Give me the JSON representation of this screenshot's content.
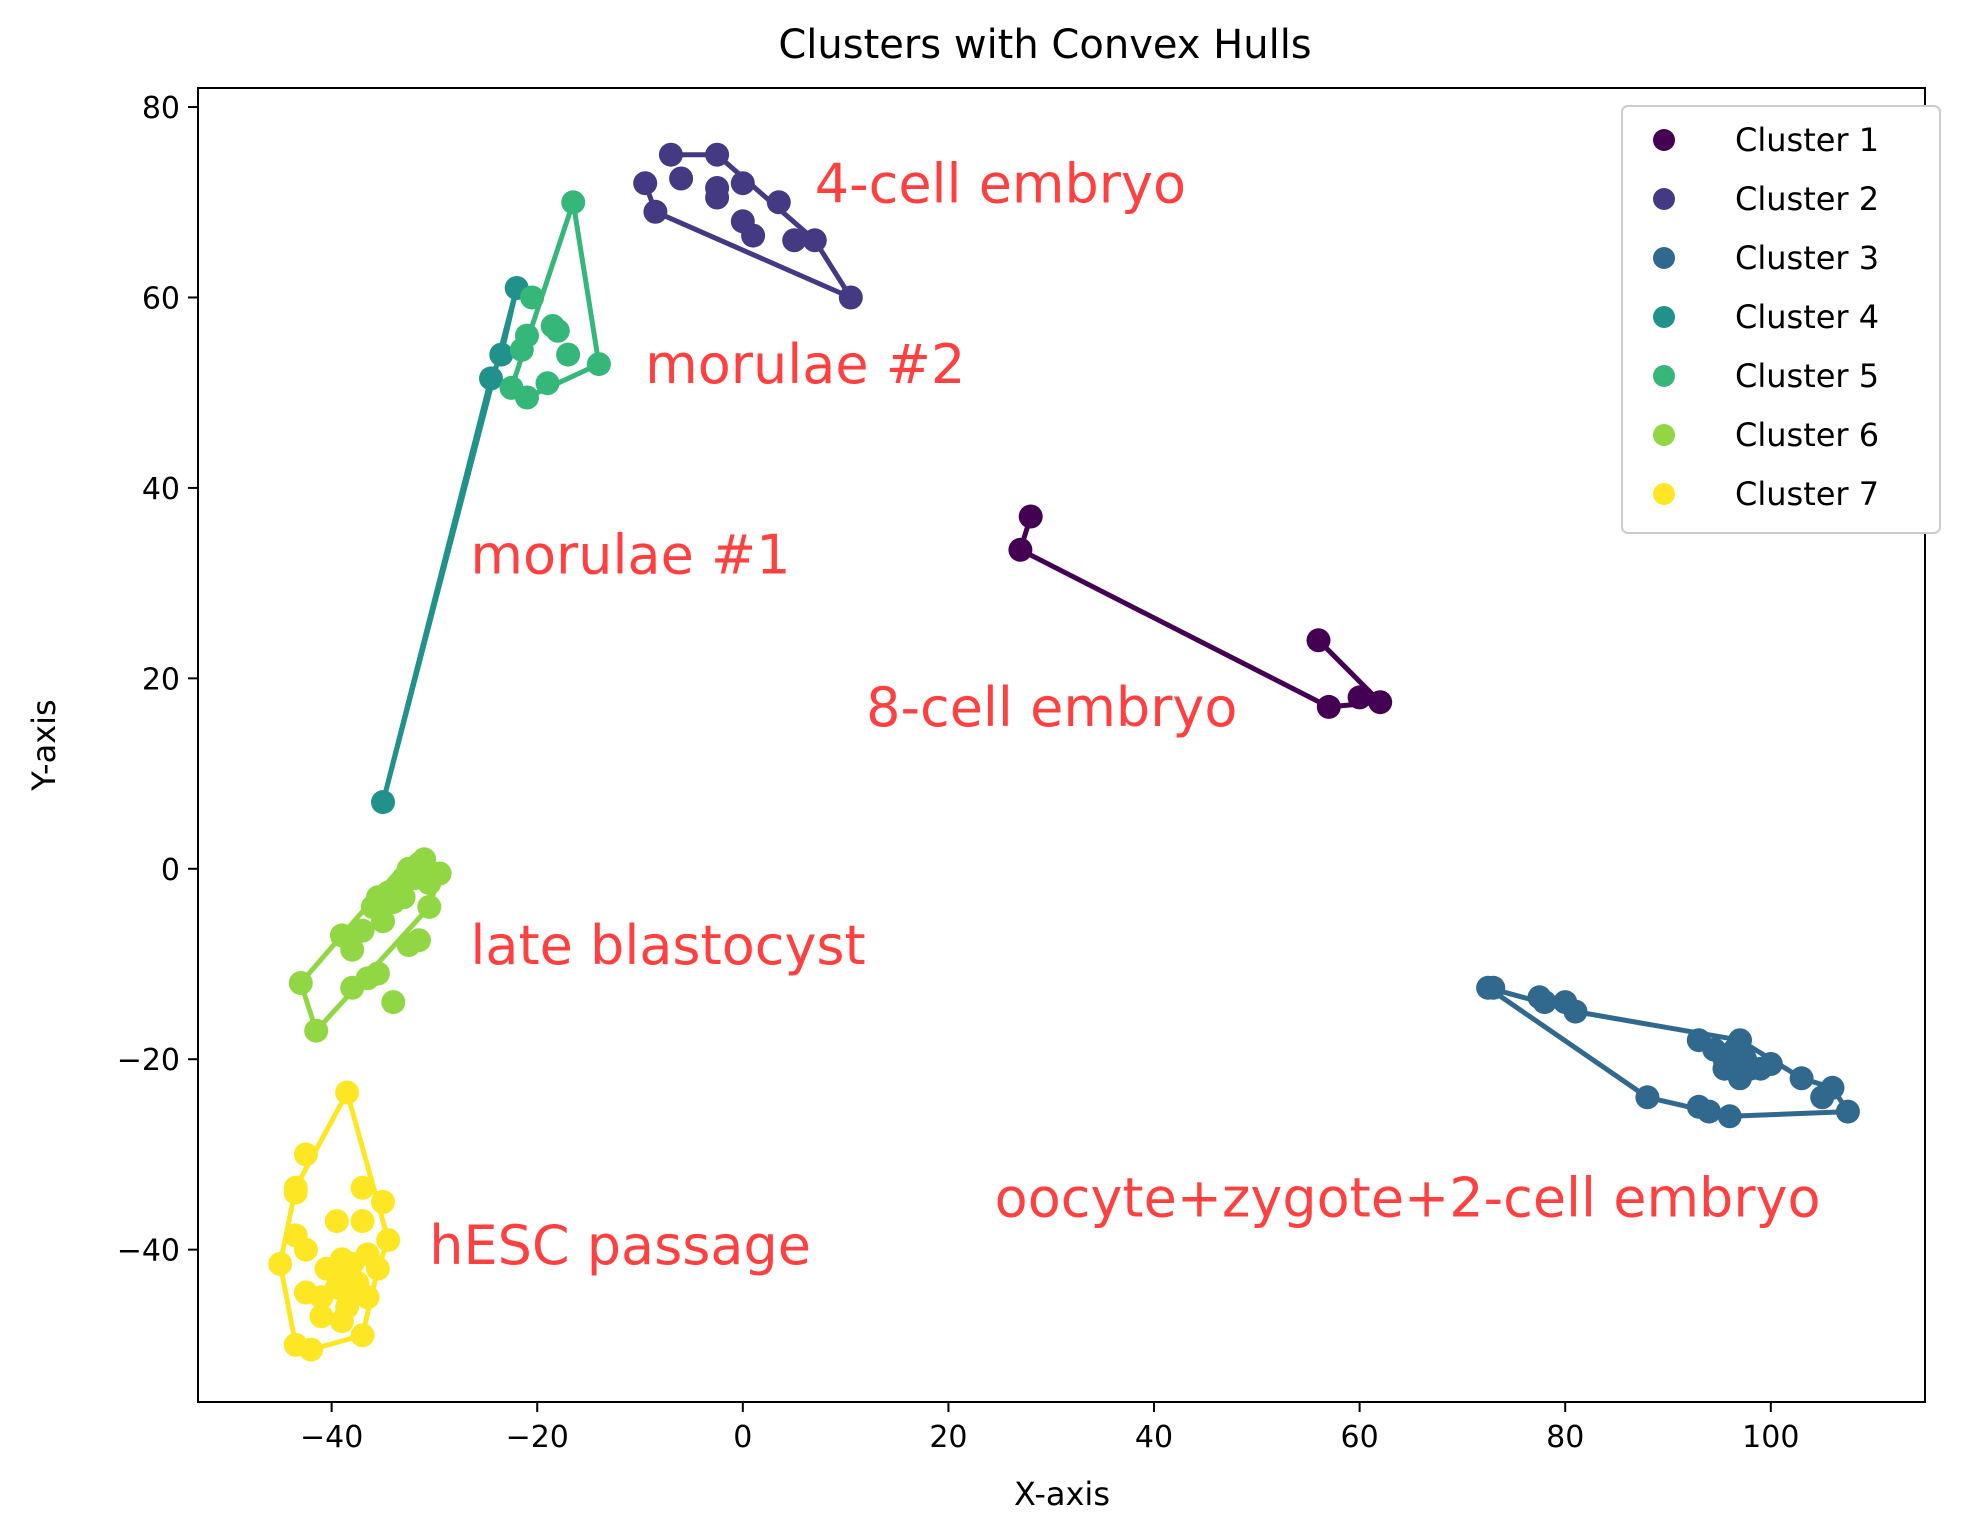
{
  "chart_data": {
    "type": "scatter",
    "title": "Clusters with Convex Hulls",
    "xlabel": "X-axis",
    "ylabel": "Y-axis",
    "xlim": [
      -53,
      115
    ],
    "ylim": [
      -56,
      82
    ],
    "xticks": [
      -40,
      -20,
      0,
      20,
      40,
      60,
      80,
      100
    ],
    "yticks": [
      -40,
      -20,
      0,
      20,
      40,
      60,
      80
    ],
    "xtick_labels": [
      "−40",
      "−20",
      "0",
      "20",
      "40",
      "60",
      "80",
      "100"
    ],
    "ytick_labels": [
      "−40",
      "−20",
      "0",
      "20",
      "40",
      "60",
      "80"
    ],
    "grid": false,
    "legend_position": "top-right",
    "series": [
      {
        "name": "Cluster 1",
        "color": "#440154",
        "label": "8-cell embryo",
        "points": [
          [
            28,
            37
          ],
          [
            27,
            33.5
          ],
          [
            56,
            24
          ],
          [
            57,
            17
          ],
          [
            60,
            18
          ],
          [
            62,
            17.5
          ]
        ],
        "hull": [
          [
            28,
            37
          ],
          [
            27,
            33.5
          ],
          [
            57,
            17
          ],
          [
            62,
            17.5
          ],
          [
            56,
            24
          ]
        ]
      },
      {
        "name": "Cluster 2",
        "color": "#443983",
        "label": "4-cell embryo",
        "points": [
          [
            -9.5,
            72
          ],
          [
            -8.5,
            69
          ],
          [
            -7,
            75
          ],
          [
            -6,
            72.5
          ],
          [
            -2.5,
            75
          ],
          [
            -2.5,
            70.5
          ],
          [
            -2.5,
            71.5
          ],
          [
            0,
            72
          ],
          [
            0,
            68
          ],
          [
            1,
            66.5
          ],
          [
            3.5,
            70
          ],
          [
            5,
            66
          ],
          [
            7,
            66
          ],
          [
            10.5,
            60
          ]
        ],
        "hull": [
          [
            -7,
            75
          ],
          [
            -2.5,
            75
          ],
          [
            7,
            66
          ],
          [
            10.5,
            60
          ],
          [
            -8.5,
            69
          ],
          [
            -9.5,
            72
          ]
        ]
      },
      {
        "name": "Cluster 3",
        "color": "#31688e",
        "label": "oocyte+zygote+2-cell embryo",
        "points": [
          [
            72.5,
            -12.5
          ],
          [
            73,
            -12.5
          ],
          [
            77.5,
            -13.5
          ],
          [
            78,
            -14
          ],
          [
            80,
            -14
          ],
          [
            81,
            -15
          ],
          [
            88,
            -24
          ],
          [
            93,
            -18
          ],
          [
            93,
            -25
          ],
          [
            94,
            -25.5
          ],
          [
            94.5,
            -19
          ],
          [
            95.5,
            -20
          ],
          [
            95.5,
            -21
          ],
          [
            96,
            -26
          ],
          [
            96.5,
            -19
          ],
          [
            97,
            -18
          ],
          [
            97,
            -22
          ],
          [
            97.5,
            -20
          ],
          [
            98,
            -21
          ],
          [
            99,
            -21
          ],
          [
            100,
            -20.5
          ],
          [
            103,
            -22
          ],
          [
            105,
            -24
          ],
          [
            106,
            -23
          ],
          [
            107.5,
            -25.5
          ]
        ],
        "hull": [
          [
            72.5,
            -12.5
          ],
          [
            81,
            -15
          ],
          [
            97,
            -18
          ],
          [
            103,
            -22
          ],
          [
            106,
            -23
          ],
          [
            107.5,
            -25.5
          ],
          [
            96,
            -26
          ],
          [
            94,
            -25.5
          ],
          [
            88,
            -24
          ],
          [
            72.5,
            -12.5
          ]
        ]
      },
      {
        "name": "Cluster 4",
        "color": "#21918c",
        "label": "morulae #1",
        "points": [
          [
            -35,
            7
          ],
          [
            -24.5,
            51.5
          ],
          [
            -23.5,
            54
          ],
          [
            -22,
            61
          ]
        ],
        "hull": [
          [
            -22,
            61
          ],
          [
            -35,
            7
          ],
          [
            -24.5,
            51.5
          ],
          [
            -23.5,
            54
          ],
          [
            -22,
            61
          ]
        ]
      },
      {
        "name": "Cluster 5",
        "color": "#35b779",
        "label": "morulae #2",
        "points": [
          [
            -16.5,
            70
          ],
          [
            -14,
            53
          ],
          [
            -17,
            54
          ],
          [
            -18,
            56.5
          ],
          [
            -18.5,
            57
          ],
          [
            -19,
            51
          ],
          [
            -20.5,
            60
          ],
          [
            -21,
            56
          ],
          [
            -21.5,
            54.5
          ],
          [
            -21,
            49.5
          ],
          [
            -22.5,
            50.5
          ]
        ],
        "hull": [
          [
            -16.5,
            70
          ],
          [
            -14,
            53
          ],
          [
            -21,
            49.5
          ],
          [
            -22.5,
            50.5
          ],
          [
            -16.5,
            70
          ]
        ]
      },
      {
        "name": "Cluster 6",
        "color": "#90d743",
        "label": "late blastocyst",
        "points": [
          [
            -43,
            -12
          ],
          [
            -41.5,
            -17
          ],
          [
            -39,
            -7
          ],
          [
            -38,
            -8.5
          ],
          [
            -37,
            -6.5
          ],
          [
            -36,
            -4
          ],
          [
            -35.5,
            -3
          ],
          [
            -35,
            -5.5
          ],
          [
            -34.5,
            -2.5
          ],
          [
            -34,
            -3.5
          ],
          [
            -33.5,
            -2
          ],
          [
            -33,
            -1.5
          ],
          [
            -33,
            -3
          ],
          [
            -32.5,
            0
          ],
          [
            -32,
            -1
          ],
          [
            -31.5,
            0.5
          ],
          [
            -31,
            1
          ],
          [
            -30.5,
            -1.5
          ],
          [
            -30.5,
            -4
          ],
          [
            -29.5,
            -0.5
          ],
          [
            -31.5,
            -7.5
          ],
          [
            -32.5,
            -8
          ],
          [
            -35.5,
            -11
          ],
          [
            -36.5,
            -11.5
          ],
          [
            -38,
            -12.5
          ],
          [
            -34,
            -14
          ]
        ],
        "hull": [
          [
            -43,
            -12
          ],
          [
            -33,
            0.5
          ],
          [
            -31,
            1
          ],
          [
            -29.5,
            -0.5
          ],
          [
            -30.5,
            -4
          ],
          [
            -41.5,
            -17
          ],
          [
            -43,
            -12
          ]
        ]
      },
      {
        "name": "Cluster 7",
        "color": "#fde725",
        "label": "hESC passage",
        "points": [
          [
            -38.5,
            -23.5
          ],
          [
            -42.5,
            -30
          ],
          [
            -43.5,
            -33.5
          ],
          [
            -43.5,
            -34
          ],
          [
            -37,
            -33.5
          ],
          [
            -35,
            -35
          ],
          [
            -39.5,
            -37
          ],
          [
            -37,
            -37
          ],
          [
            -43.5,
            -38.5
          ],
          [
            -34.5,
            -39
          ],
          [
            -42.5,
            -40
          ],
          [
            -36.5,
            -40.5
          ],
          [
            -39,
            -41
          ],
          [
            -38,
            -41.5
          ],
          [
            -35.5,
            -42
          ],
          [
            -45,
            -41.5
          ],
          [
            -40.5,
            -42
          ],
          [
            -39.5,
            -42.5
          ],
          [
            -38.5,
            -43
          ],
          [
            -37.5,
            -43.5
          ],
          [
            -39.5,
            -44
          ],
          [
            -38,
            -44
          ],
          [
            -41,
            -45
          ],
          [
            -42.5,
            -44.5
          ],
          [
            -36.5,
            -45
          ],
          [
            -38.5,
            -46
          ],
          [
            -41,
            -47
          ],
          [
            -39,
            -47.5
          ],
          [
            -37,
            -49
          ],
          [
            -43.5,
            -50
          ],
          [
            -42,
            -50.5
          ]
        ],
        "hull": [
          [
            -38.5,
            -23.5
          ],
          [
            -34.5,
            -39
          ],
          [
            -35.5,
            -42
          ],
          [
            -37,
            -49
          ],
          [
            -42,
            -50.5
          ],
          [
            -43.5,
            -50
          ],
          [
            -45,
            -41.5
          ],
          [
            -43.5,
            -33.5
          ],
          [
            -38.5,
            -23.5
          ]
        ]
      }
    ],
    "annotations": [
      {
        "text": "4-cell embryo",
        "x": 7,
        "y": 70
      },
      {
        "text": "morulae #2",
        "x": -9.5,
        "y": 51
      },
      {
        "text": "morulae #1",
        "x": -26.5,
        "y": 31
      },
      {
        "text": "8-cell embryo",
        "x": 12,
        "y": 15
      },
      {
        "text": "late blastocyst",
        "x": -26.5,
        "y": -10
      },
      {
        "text": "oocyte+zygote+2-cell embryo",
        "x": 24.5,
        "y": -36.5
      },
      {
        "text": "hESC passage",
        "x": -30.5,
        "y": -41.5
      }
    ],
    "annotation_color": "#ff4040"
  }
}
